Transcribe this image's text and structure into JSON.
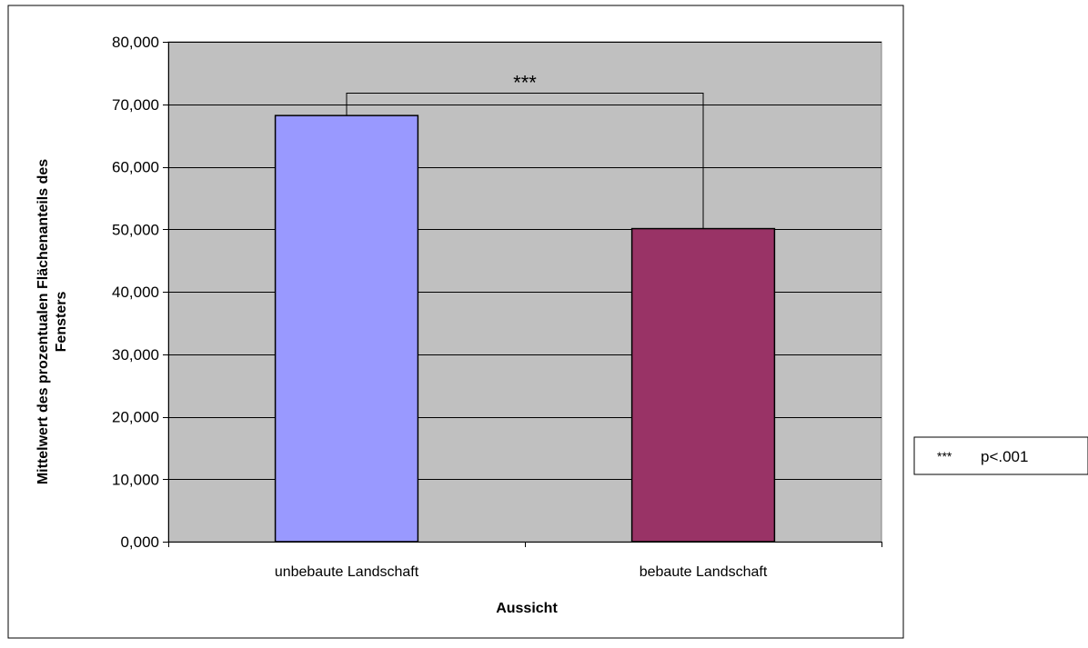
{
  "chart_data": {
    "type": "bar",
    "categories": [
      "unbebaute Landschaft",
      "bebaute Landschaft"
    ],
    "values": [
      68.2,
      50.1
    ],
    "xlabel": "Aussicht",
    "ylabel_lines": [
      "Mittelwert des prozentualen Flächenanteils des",
      "Fensters"
    ],
    "ylim": [
      0,
      80
    ],
    "yticks": [
      0,
      10,
      20,
      30,
      40,
      50,
      60,
      70,
      80
    ],
    "ytick_labels": [
      "0,000",
      "10,000",
      "20,000",
      "30,000",
      "40,000",
      "50,000",
      "60,000",
      "70,000",
      "80,000"
    ],
    "grid": true,
    "plot_background": "#c0c0c0",
    "bar_colors": [
      "#9999ff",
      "#993366"
    ],
    "significance": {
      "marker": "***",
      "bracket_level": 71.8,
      "between": [
        0,
        1
      ]
    },
    "legend": {
      "position": "right",
      "symbol": "***",
      "text": "p<.001"
    }
  }
}
